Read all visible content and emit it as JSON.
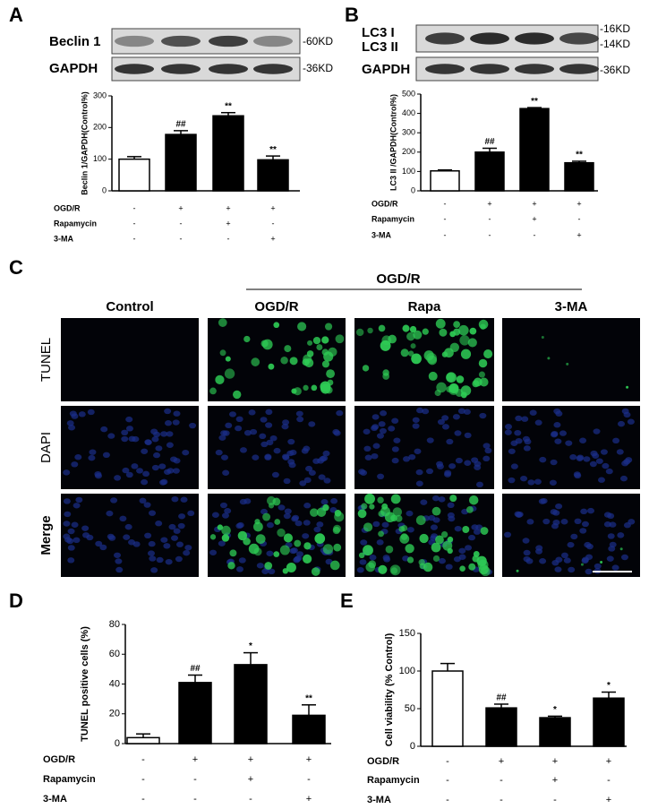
{
  "panel_labels": [
    "A",
    "B",
    "C",
    "D",
    "E"
  ],
  "blot_a": {
    "rows": [
      {
        "label": "Beclin 1",
        "size": "-60KD"
      },
      {
        "label": "GAPDH",
        "size": "-36KD"
      }
    ]
  },
  "blot_b": {
    "rows": [
      {
        "label": "LC3 I",
        "size": "-16KD"
      },
      {
        "label": "LC3 II",
        "size": "-14KD"
      },
      {
        "label": "GAPDH",
        "size": "-36KD"
      }
    ]
  },
  "microscopy": {
    "group_label": "OGD/R",
    "columns": [
      "Control",
      "OGD/R",
      "Rapa",
      "3-MA"
    ],
    "rows": [
      "TUNEL",
      "DAPI",
      "Merge"
    ],
    "row_colors": [
      "#1fae4b",
      "#2b3f9e",
      "#000000"
    ]
  },
  "chart_data": [
    {
      "type": "bar",
      "ylabel": "Beclin 1/GAPDH(Control%)",
      "values": [
        100,
        178,
        237,
        98
      ],
      "errors": [
        8,
        12,
        10,
        12
      ],
      "significance": [
        null,
        "##",
        "**",
        "**"
      ],
      "colors": [
        "#ffffff",
        "#000000",
        "#000000",
        "#000000"
      ],
      "ylim": [
        0,
        300
      ],
      "yticks": [
        0,
        100,
        200,
        300
      ],
      "conditions": [
        {
          "name": "OGD/R",
          "marks": [
            "-",
            "+",
            "+",
            "+"
          ]
        },
        {
          "name": "Rapamycin",
          "marks": [
            "-",
            "-",
            "+",
            "-"
          ]
        },
        {
          "name": "3-MA",
          "marks": [
            "-",
            "-",
            "-",
            "+"
          ]
        }
      ]
    },
    {
      "type": "bar",
      "ylabel": "LC3 II /GAPDH(Control%)",
      "values": [
        103,
        200,
        425,
        145
      ],
      "errors": [
        5,
        20,
        5,
        8
      ],
      "significance": [
        null,
        "##",
        "**",
        "**"
      ],
      "colors": [
        "#ffffff",
        "#000000",
        "#000000",
        "#000000"
      ],
      "ylim": [
        0,
        500
      ],
      "yticks": [
        0,
        100,
        200,
        300,
        400,
        500
      ],
      "conditions": [
        {
          "name": "OGD/R",
          "marks": [
            "-",
            "+",
            "+",
            "+"
          ]
        },
        {
          "name": "Rapamycin",
          "marks": [
            "-",
            "-",
            "+",
            "-"
          ]
        },
        {
          "name": "3-MA",
          "marks": [
            "-",
            "-",
            "-",
            "+"
          ]
        }
      ]
    },
    {
      "type": "bar",
      "ylabel": "TUNEL positive cells (%)",
      "values": [
        4,
        41,
        53,
        19
      ],
      "errors": [
        2.5,
        5,
        8,
        7
      ],
      "significance": [
        null,
        "##",
        "*",
        "**"
      ],
      "colors": [
        "#ffffff",
        "#000000",
        "#000000",
        "#000000"
      ],
      "ylim": [
        0,
        80
      ],
      "yticks": [
        0,
        20,
        40,
        60,
        80
      ],
      "conditions": [
        {
          "name": "OGD/R",
          "marks": [
            "-",
            "+",
            "+",
            "+"
          ]
        },
        {
          "name": "Rapamycin",
          "marks": [
            "-",
            "-",
            "+",
            "-"
          ]
        },
        {
          "name": "3-MA",
          "marks": [
            "-",
            "-",
            "-",
            "+"
          ]
        }
      ]
    },
    {
      "type": "bar",
      "ylabel": "Cell viability (% Control)",
      "values": [
        100,
        51,
        38,
        64
      ],
      "errors": [
        10,
        5,
        2,
        8
      ],
      "significance": [
        null,
        "##",
        "*",
        "*"
      ],
      "colors": [
        "#ffffff",
        "#000000",
        "#000000",
        "#000000"
      ],
      "ylim": [
        0,
        150
      ],
      "yticks": [
        0,
        50,
        100,
        150
      ],
      "conditions": [
        {
          "name": "OGD/R",
          "marks": [
            "-",
            "+",
            "+",
            "+"
          ]
        },
        {
          "name": "Rapamycin",
          "marks": [
            "-",
            "-",
            "+",
            "-"
          ]
        },
        {
          "name": "3-MA",
          "marks": [
            "-",
            "-",
            "-",
            "+"
          ]
        }
      ]
    }
  ]
}
